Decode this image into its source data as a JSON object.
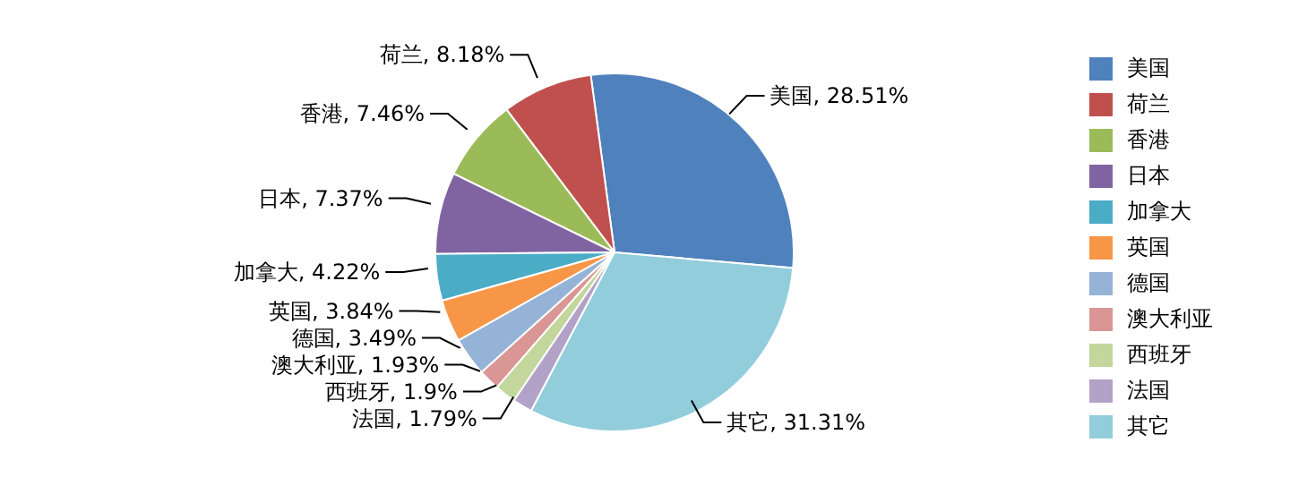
{
  "chart_data": {
    "type": "pie",
    "categories": [
      "美国",
      "荷兰",
      "香港",
      "日本",
      "加拿大",
      "英国",
      "德国",
      "澳大利亚",
      "西班牙",
      "法国",
      "其它"
    ],
    "values": [
      28.51,
      8.18,
      7.46,
      7.37,
      4.22,
      3.84,
      3.49,
      1.93,
      1.9,
      1.79,
      31.31
    ],
    "value_labels": [
      "美国, 28.51%",
      "荷兰, 8.18%",
      "香港, 7.46%",
      "日本, 7.37%",
      "加拿大, 4.22%",
      "英国, 3.84%",
      "德国, 3.49%",
      "澳大利亚, 1.93%",
      "西班牙, 1.9%",
      "法国, 1.79%",
      "其它, 31.31%"
    ],
    "colors": [
      "#4f81bd",
      "#c0504d",
      "#9bbb59",
      "#8064a2",
      "#4bacc6",
      "#f79646",
      "#95b3d7",
      "#d99694",
      "#c3d69b",
      "#b3a2c7",
      "#92cddc"
    ],
    "legend": "right"
  }
}
